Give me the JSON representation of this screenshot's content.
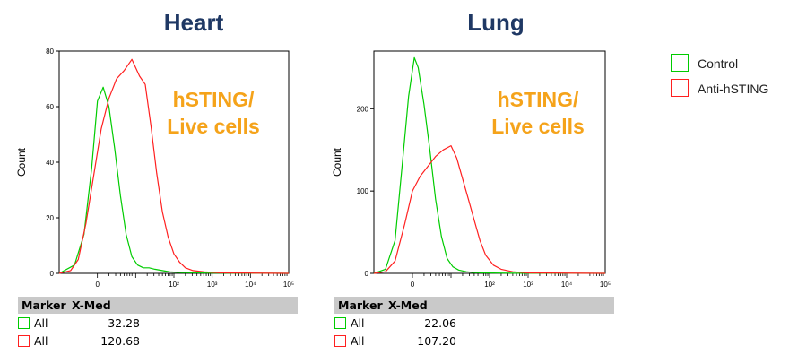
{
  "colors": {
    "control": "#00cc00",
    "anti": "#ff2020",
    "title": "#1f3864",
    "annotation": "#f5a31a"
  },
  "legend": [
    {
      "label": "Control",
      "color": "#00cc00"
    },
    {
      "label": "Anti-hSTING",
      "color": "#ff2020"
    }
  ],
  "chart_data": [
    {
      "type": "line",
      "title": "Heart",
      "ylabel": "Count",
      "xlabel": "",
      "annotation": [
        "hSTING/",
        "Live cells"
      ],
      "xscale": "log",
      "xlim": [
        -1,
        5
      ],
      "ylim": [
        0,
        80
      ],
      "yticks": [
        0,
        20,
        40,
        60,
        80
      ],
      "xtick_labels": [
        "0",
        "10²",
        "10³",
        "10⁴",
        "10⁵"
      ],
      "xtick_values": [
        0,
        2,
        3,
        4,
        5
      ],
      "series": [
        {
          "name": "Control",
          "color": "#00cc00",
          "x": [
            -1.05,
            -0.6,
            -0.35,
            -0.15,
            0.0,
            0.15,
            0.3,
            0.45,
            0.6,
            0.75,
            0.9,
            1.05,
            1.2,
            1.35,
            1.5,
            1.7,
            1.9,
            2.2,
            2.6,
            3.0,
            5.0
          ],
          "y": [
            0,
            3,
            14,
            38,
            62,
            67,
            60,
            45,
            28,
            14,
            6,
            3,
            2,
            2,
            1.5,
            1,
            0.5,
            0.3,
            0.2,
            0.1,
            0
          ]
        },
        {
          "name": "Anti-hSTING",
          "color": "#ff2020",
          "x": [
            -1.05,
            -0.7,
            -0.5,
            -0.3,
            -0.1,
            0.1,
            0.3,
            0.5,
            0.7,
            0.9,
            1.1,
            1.25,
            1.4,
            1.55,
            1.7,
            1.85,
            2.0,
            2.15,
            2.3,
            2.5,
            2.8,
            3.2,
            5.0
          ],
          "y": [
            0,
            1,
            5,
            18,
            35,
            52,
            63,
            70,
            73,
            77,
            71,
            68,
            53,
            36,
            22,
            13,
            7,
            4,
            2,
            1,
            0.5,
            0.2,
            0
          ]
        }
      ],
      "stats": {
        "header": [
          "Marker",
          "X-Med"
        ],
        "rows": [
          {
            "swatch": "#00cc00",
            "gate": "All",
            "value": "32.28"
          },
          {
            "swatch": "#ff2020",
            "gate": "All",
            "value": "120.68"
          }
        ]
      }
    },
    {
      "type": "line",
      "title": "Lung",
      "ylabel": "Count",
      "xlabel": "",
      "annotation": [
        "hSTING/",
        "Live cells"
      ],
      "xscale": "log",
      "xlim": [
        -1,
        5
      ],
      "ylim": [
        0,
        270
      ],
      "yticks": [
        0,
        100,
        200
      ],
      "xtick_labels": [
        "0",
        "10²",
        "10³",
        "10⁴",
        "10⁵"
      ],
      "xtick_values": [
        0,
        2,
        3,
        4,
        5
      ],
      "series": [
        {
          "name": "Control",
          "color": "#00cc00",
          "x": [
            -1.05,
            -0.7,
            -0.45,
            -0.25,
            -0.1,
            0.05,
            0.15,
            0.3,
            0.45,
            0.6,
            0.75,
            0.9,
            1.05,
            1.2,
            1.4,
            1.6,
            1.9,
            2.3,
            2.8,
            5.0
          ],
          "y": [
            0,
            5,
            40,
            140,
            215,
            262,
            250,
            205,
            150,
            90,
            45,
            18,
            8,
            4,
            2,
            1,
            0.5,
            0.3,
            0.1,
            0
          ]
        },
        {
          "name": "Anti-hSTING",
          "color": "#ff2020",
          "x": [
            -1.05,
            -0.7,
            -0.45,
            -0.2,
            0.0,
            0.2,
            0.4,
            0.6,
            0.8,
            1.0,
            1.15,
            1.3,
            1.45,
            1.6,
            1.75,
            1.9,
            2.1,
            2.3,
            2.6,
            3.0,
            5.0
          ],
          "y": [
            0,
            2,
            15,
            60,
            100,
            118,
            130,
            142,
            150,
            155,
            140,
            115,
            90,
            65,
            40,
            22,
            10,
            5,
            2,
            0.5,
            0
          ]
        }
      ],
      "stats": {
        "header": [
          "Marker",
          "X-Med"
        ],
        "rows": [
          {
            "swatch": "#00cc00",
            "gate": "All",
            "value": "22.06"
          },
          {
            "swatch": "#ff2020",
            "gate": "All",
            "value": "107.20"
          }
        ]
      }
    }
  ]
}
